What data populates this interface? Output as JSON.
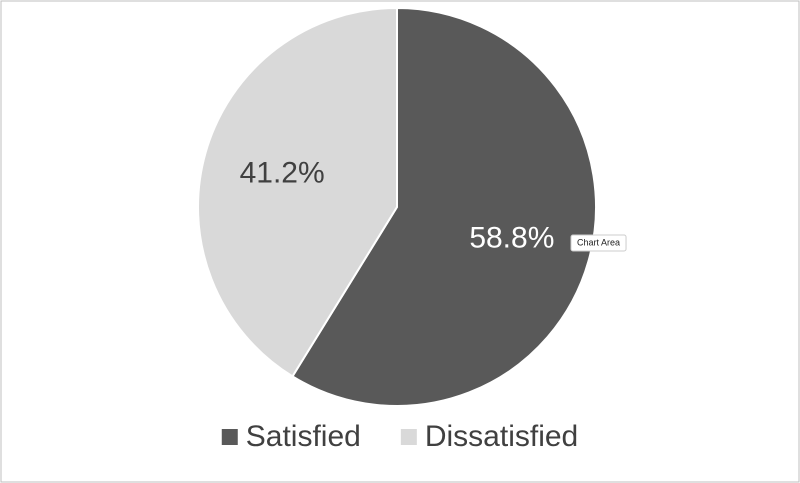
{
  "chart_data": {
    "type": "pie",
    "categories": [
      "Satisfied",
      "Dissatisfied"
    ],
    "values": [
      58.8,
      41.2
    ],
    "value_labels": [
      "58.8%",
      "41.2%"
    ],
    "colors": [
      "#595959",
      "#d9d9d9"
    ],
    "label_colors": [
      "#ffffff",
      "#404040"
    ],
    "legend": "bottom",
    "annotation": "Chart Area"
  }
}
